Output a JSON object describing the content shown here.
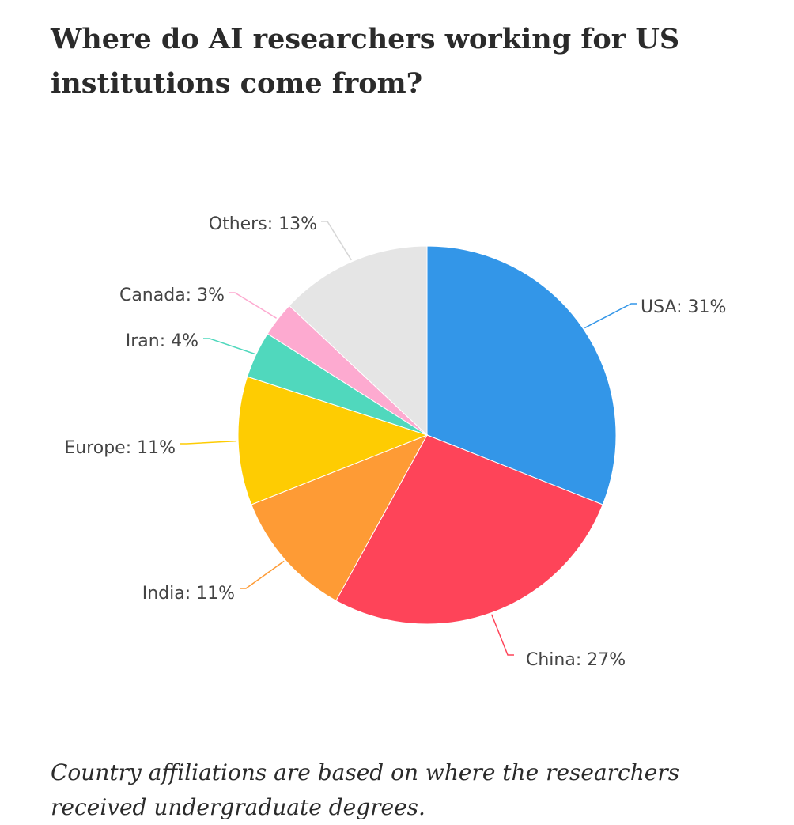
{
  "title": "Where do AI researchers working for US institutions come from?",
  "caption": "Country affiliations are based on where the researchers received undergraduate degrees.",
  "chart_data": {
    "type": "pie",
    "title": "Where do AI researchers working for US institutions come from?",
    "slices": [
      {
        "name": "USA",
        "value": 31,
        "label": "USA: 31%",
        "color": "#3396e8"
      },
      {
        "name": "China",
        "value": 27,
        "label": "China: 27%",
        "color": "#fe4459"
      },
      {
        "name": "India",
        "value": 11,
        "label": "India: 11%",
        "color": "#fe9b35"
      },
      {
        "name": "Europe",
        "value": 11,
        "label": "Europe: 11%",
        "color": "#fecc02"
      },
      {
        "name": "Iran",
        "value": 4,
        "label": "Iran: 4%",
        "color": "#50d8bd"
      },
      {
        "name": "Canada",
        "value": 3,
        "label": "Canada: 3%",
        "color": "#fdaad0"
      },
      {
        "name": "Others",
        "value": 13,
        "label": "Others: 13%",
        "color": "#e5e5e5"
      }
    ],
    "start": "12 o'clock",
    "direction": "clockwise"
  }
}
